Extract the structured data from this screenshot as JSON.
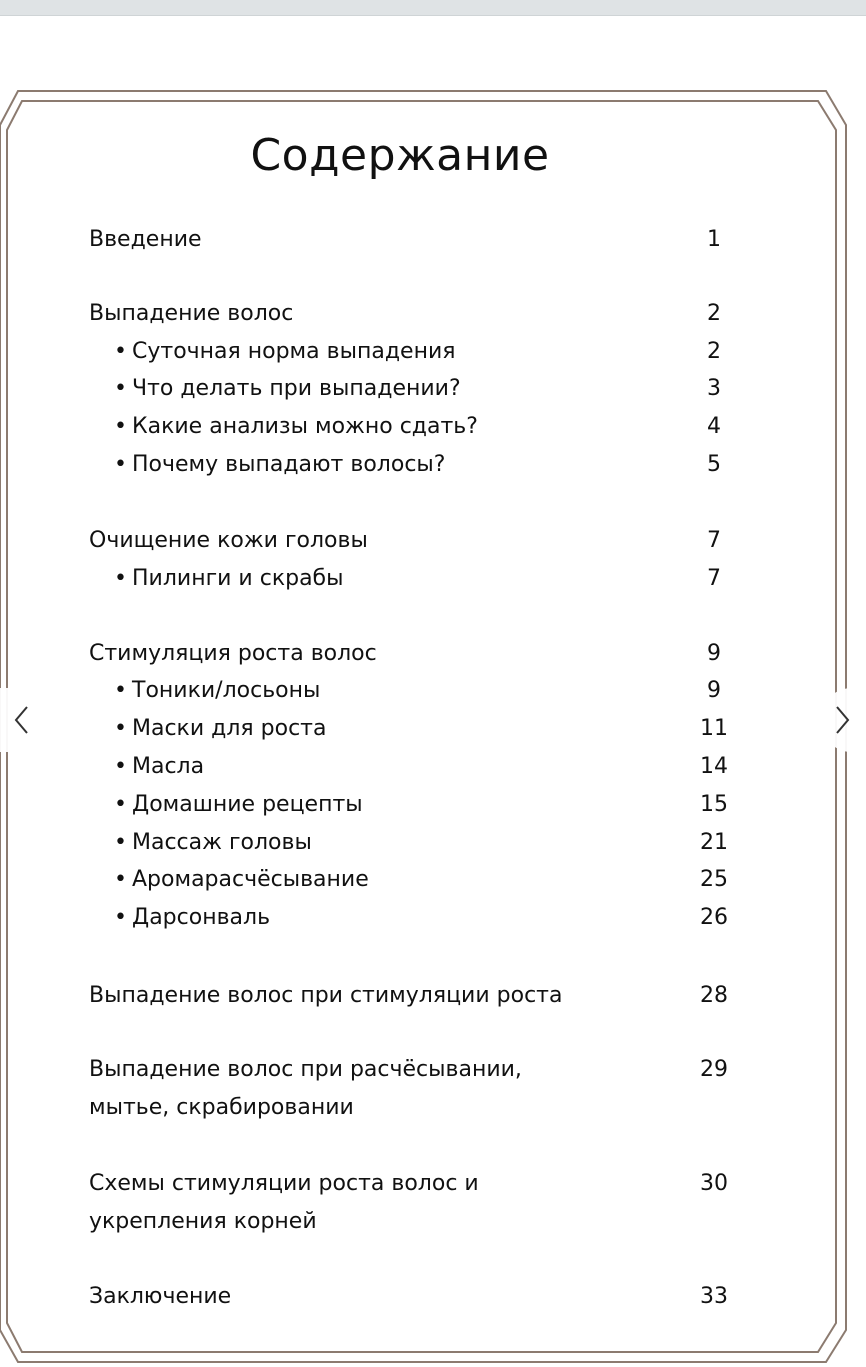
{
  "document": {
    "title": "Содержание",
    "entries": [
      {
        "label": "Введение",
        "page": "1",
        "level": 0
      },
      {
        "label": "Выпадение волос",
        "page": "2",
        "level": 0
      },
      {
        "label": "Суточная норма выпадения",
        "page": "2",
        "level": 1
      },
      {
        "label": "Что делать при выпадении?",
        "page": "3",
        "level": 1
      },
      {
        "label": "Какие анализы можно сдать?",
        "page": "4",
        "level": 1
      },
      {
        "label": "Почему выпадают волосы?",
        "page": "5",
        "level": 1
      },
      {
        "label": "Очищение кожи головы",
        "page": "7",
        "level": 0
      },
      {
        "label": "Пилинги и скрабы",
        "page": "7",
        "level": 1
      },
      {
        "label": "Стимуляция роста волос",
        "page": "9",
        "level": 0
      },
      {
        "label": "Тоники/лосьоны",
        "page": "9",
        "level": 1
      },
      {
        "label": "Маски для роста",
        "page": "11",
        "level": 1
      },
      {
        "label": "Масла",
        "page": "14",
        "level": 1
      },
      {
        "label": "Домашние рецепты",
        "page": "15",
        "level": 1
      },
      {
        "label": "Массаж головы",
        "page": "21",
        "level": 1
      },
      {
        "label": "Аромарасчёсывание",
        "page": "25",
        "level": 1
      },
      {
        "label": "Дарсонваль",
        "page": "26",
        "level": 1
      },
      {
        "label": "Выпадение волос при стимуляции роста",
        "page": "28",
        "level": 0
      },
      {
        "label": "Выпадение волос при расчёсывании,",
        "page": "29",
        "level": 0
      },
      {
        "label": "мытье, скрабировании",
        "page": "",
        "level": 0
      },
      {
        "label": "Схемы стимуляции роста волос и",
        "page": "30",
        "level": 0
      },
      {
        "label": "укрепления корней",
        "page": "",
        "level": 0
      },
      {
        "label": "Заключение",
        "page": "33",
        "level": 0
      }
    ],
    "bullet": "•"
  },
  "navigation": {
    "prev_icon": "chevron-left-icon",
    "next_icon": "chevron-right-icon"
  },
  "colors": {
    "frame": "#8c7b70",
    "topbar": "#dfe3e5"
  }
}
